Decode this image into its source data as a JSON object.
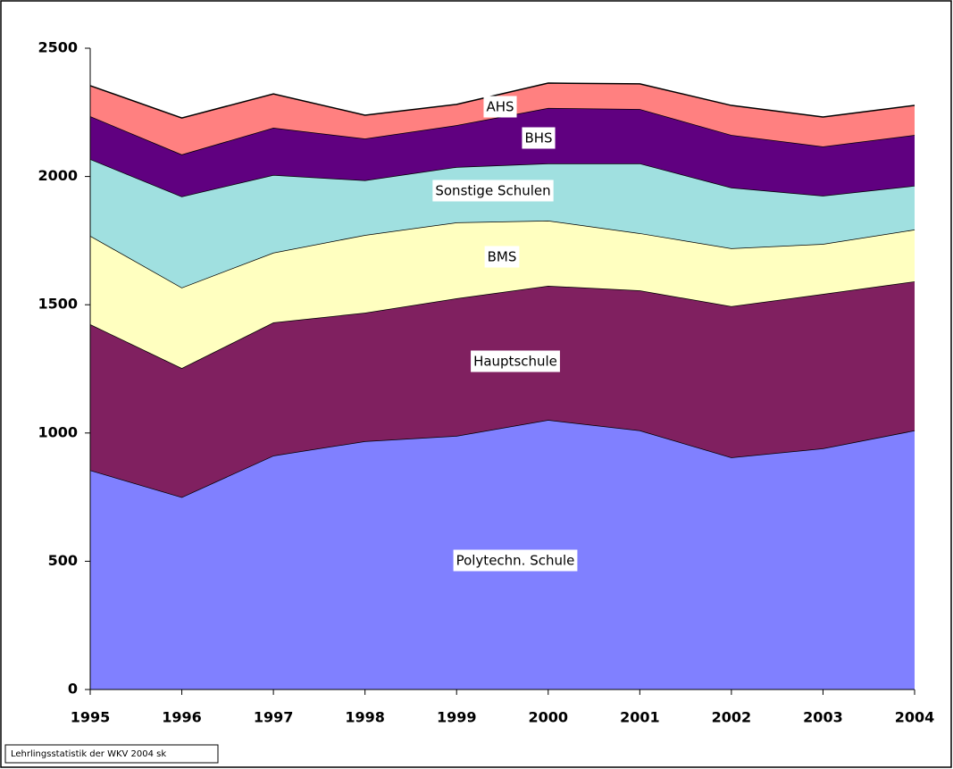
{
  "chart_data": {
    "type": "stacked_area",
    "categories": [
      "1995",
      "1996",
      "1997",
      "1998",
      "1999",
      "2000",
      "2001",
      "2002",
      "2003",
      "2004"
    ],
    "series": [
      {
        "name": "Polytechn. Schule",
        "color": "#8080ff",
        "values": [
          855,
          750,
          912,
          968,
          989,
          1051,
          1010,
          905,
          940,
          1010
        ]
      },
      {
        "name": "Hauptschule",
        "color": "#802060",
        "values": [
          569,
          503,
          519,
          501,
          536,
          523,
          546,
          589,
          602,
          581
        ]
      },
      {
        "name": "BMS",
        "color": "#ffffc0",
        "values": [
          345,
          314,
          272,
          303,
          296,
          254,
          223,
          226,
          195,
          202
        ]
      },
      {
        "name": "Sonstige Schulen",
        "color": "#a0e0e0",
        "values": [
          299,
          355,
          303,
          213,
          216,
          223,
          272,
          237,
          188,
          171
        ]
      },
      {
        "name": "BHS",
        "color": "#600080",
        "values": [
          167,
          164,
          184,
          163,
          163,
          216,
          212,
          205,
          192,
          198
        ]
      },
      {
        "name": "AHS",
        "color": "#ff8080",
        "values": [
          119,
          142,
          132,
          91,
          81,
          97,
          98,
          115,
          115,
          115
        ]
      }
    ],
    "ylim": [
      0,
      2500
    ],
    "yticks": [
      0,
      500,
      1000,
      1500,
      2000,
      2500
    ],
    "source": "Lehrlingsstatistik der WKV 2004 sk"
  }
}
